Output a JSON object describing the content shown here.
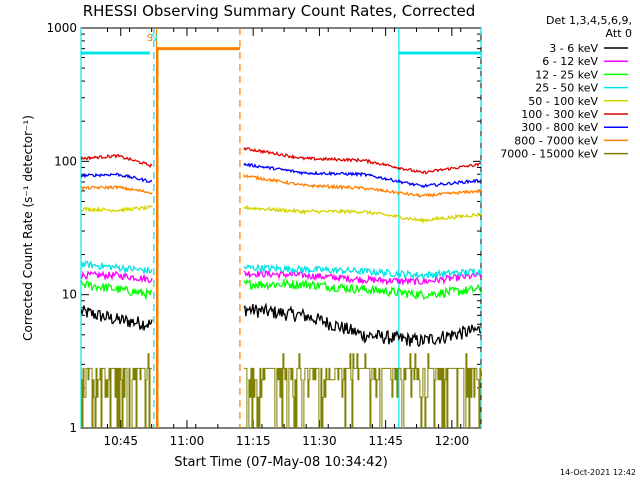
{
  "chart_data": {
    "type": "line",
    "title": "RHESSI Observing Summary Count Rates, Corrected",
    "xlabel": "Start Time (07-May-08 10:34:42)",
    "ylabel": "Corrected Count Rate (s⁻¹ detector⁻¹)",
    "footer": "14-Oct-2021 12:42",
    "y_scale": "log",
    "ylim": [
      1,
      1000
    ],
    "y_ticks": [
      1,
      10,
      100,
      1000
    ],
    "y_tick_labels": [
      "1",
      "10",
      "100",
      "1000"
    ],
    "x_range_minutes": [
      10.6,
      12.11
    ],
    "x_ticks": [
      {
        "label": "10:45",
        "t": 10.75
      },
      {
        "label": "11:00",
        "t": 11.0
      },
      {
        "label": "11:15",
        "t": 11.25
      },
      {
        "label": "11:30",
        "t": 11.5
      },
      {
        "label": "11:45",
        "t": 11.75
      },
      {
        "label": "12:00",
        "t": 12.0
      }
    ],
    "legend": {
      "header": [
        "Det 1,3,4,5,6,9,",
        "Att 0"
      ],
      "placement": "right"
    },
    "markers": [
      {
        "label": "S",
        "t": 10.86,
        "color": "#ff8000"
      },
      {
        "label": "N",
        "t": 10.875,
        "color": "#00e5e5"
      }
    ],
    "night_bars": [
      {
        "t0": 10.6,
        "t1": 10.86,
        "value": 650,
        "color": "#00e5e5"
      },
      {
        "t0": 11.8,
        "t1": 12.11,
        "value": 650,
        "color": "#00e5e5"
      }
    ],
    "saa_bar": {
      "t0": 10.885,
      "t1": 11.2,
      "value": 700,
      "color": "#ff8000"
    },
    "vlines": [
      {
        "t": 10.6,
        "color": "#00e5e5",
        "style": "solid"
      },
      {
        "t": 10.875,
        "color": "#00e5e5",
        "style": "dashed"
      },
      {
        "t": 10.885,
        "color": "#ff8000",
        "style": "solid"
      },
      {
        "t": 11.2,
        "color": "#ff8000",
        "style": "dashed"
      },
      {
        "t": 11.8,
        "color": "#00e5e5",
        "style": "solid"
      },
      {
        "t": 12.11,
        "color": "#00e5e5",
        "style": "dashed"
      }
    ],
    "segments": [
      [
        10.6,
        10.87
      ],
      [
        11.215,
        12.11
      ]
    ],
    "series": [
      {
        "name": "3 - 6 keV",
        "color": "#000000",
        "a": [
          7.5,
          6.5,
          6.0
        ],
        "b": [
          7.8,
          7.0,
          5.0,
          4.5,
          5.5
        ],
        "noise": 0.12
      },
      {
        "name": "6 - 12 keV",
        "color": "#ff00ff",
        "a": [
          14,
          14,
          13
        ],
        "b": [
          14.5,
          14,
          13,
          12.5,
          14
        ],
        "noise": 0.06
      },
      {
        "name": "12 - 25 keV",
        "color": "#00ff00",
        "a": [
          12,
          11,
          10
        ],
        "b": [
          12,
          12,
          11,
          10,
          11
        ],
        "noise": 0.08
      },
      {
        "name": "25 - 50 keV",
        "color": "#00e5e5",
        "a": [
          17,
          16,
          15
        ],
        "b": [
          16,
          15.5,
          15,
          14,
          15
        ],
        "noise": 0.06
      },
      {
        "name": "50 - 100 keV",
        "color": "#d4d400",
        "a": [
          44,
          43,
          45
        ],
        "b": [
          45,
          42,
          42,
          36,
          40
        ],
        "noise": 0.03
      },
      {
        "name": "100 - 300 keV",
        "color": "#e00000",
        "a": [
          105,
          110,
          92
        ],
        "b": [
          125,
          105,
          102,
          82,
          95
        ],
        "noise": 0.025
      },
      {
        "name": "300 - 800 keV",
        "color": "#0000ff",
        "a": [
          78,
          80,
          70
        ],
        "b": [
          95,
          82,
          80,
          65,
          72
        ],
        "noise": 0.025
      },
      {
        "name": "800 - 7000 keV",
        "color": "#ff8000",
        "a": [
          63,
          64,
          58
        ],
        "b": [
          78,
          66,
          63,
          55,
          60
        ],
        "noise": 0.025
      },
      {
        "name": "7000 - 15000 keV",
        "color": "#808000",
        "a": [
          2.5
        ],
        "b": [
          2.0
        ],
        "noise": 0.0,
        "stepped": true
      }
    ]
  }
}
